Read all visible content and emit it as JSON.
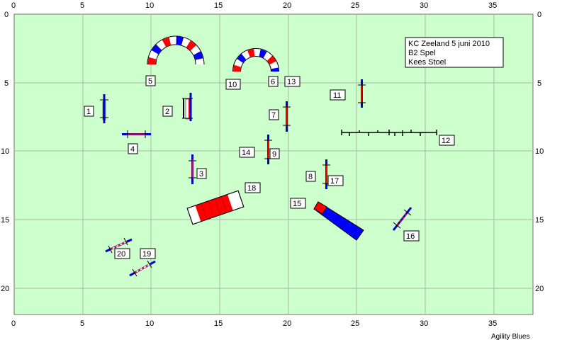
{
  "colors": {
    "field": "#ccffcc",
    "grid": "#a8b8a8",
    "bar_red": "#ff0000",
    "bar_white": "#ffffff",
    "stand_blue": "#0000cc",
    "tunnel_red": "#ff0000",
    "tunnel_blue": "#0000ff"
  },
  "info_box": {
    "line1": "KC Zeeland 5 juni 2010",
    "line2": "B2 Spel",
    "line3": "Kees Stoel"
  },
  "credit": "Agility Blues",
  "axes": {
    "x_ticks": [
      "0",
      "5",
      "10",
      "15",
      "20",
      "25",
      "30",
      "35"
    ],
    "y_ticks": [
      "0",
      "5",
      "10",
      "15",
      "20"
    ]
  },
  "obstacle_numbers": {
    "n1": "1",
    "n2": "2",
    "n3": "3",
    "n4": "4",
    "n5": "5",
    "n6": "6",
    "n7": "7",
    "n8": "8",
    "n9": "9",
    "n10": "10",
    "n11": "11",
    "n12": "12",
    "n13": "13",
    "n14": "14",
    "n15": "15",
    "n16": "16",
    "n17": "17",
    "n18": "18",
    "n19": "19",
    "n20": "20"
  }
}
